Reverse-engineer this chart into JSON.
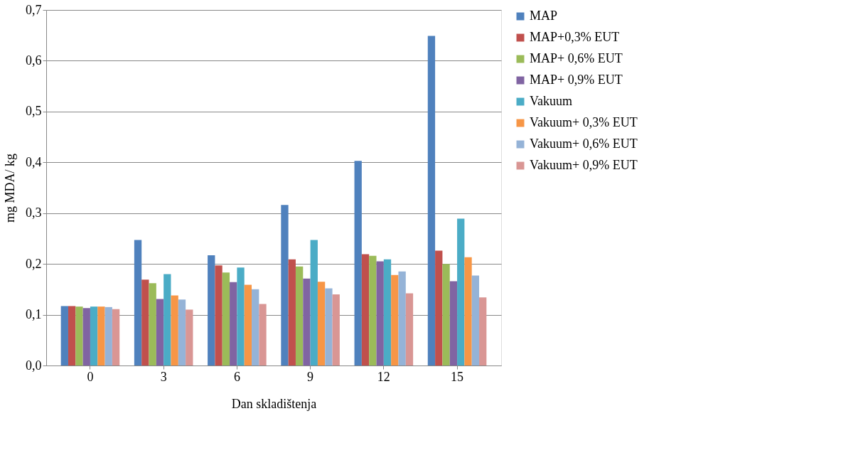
{
  "chart_data": {
    "type": "bar",
    "xlabel": "Dan skladištenja",
    "ylabel": "mg MDA/ kg",
    "categories": [
      "0",
      "3",
      "6",
      "9",
      "12",
      "15"
    ],
    "series": [
      {
        "name": "MAP",
        "color": "#4f81bd",
        "values": [
          0.117,
          0.247,
          0.217,
          0.316,
          0.403,
          0.649
        ]
      },
      {
        "name": "MAP+0,3% EUT",
        "color": "#c0504d",
        "values": [
          0.117,
          0.169,
          0.197,
          0.209,
          0.219,
          0.226
        ]
      },
      {
        "name": "MAP+ 0,6% EUT",
        "color": "#9bbb59",
        "values": [
          0.116,
          0.162,
          0.183,
          0.195,
          0.216,
          0.2
        ]
      },
      {
        "name": "MAP+ 0,9% EUT",
        "color": "#8064a2",
        "values": [
          0.113,
          0.131,
          0.164,
          0.171,
          0.205,
          0.166
        ]
      },
      {
        "name": "Vakuum",
        "color": "#4bacc6",
        "values": [
          0.116,
          0.18,
          0.193,
          0.247,
          0.209,
          0.289
        ]
      },
      {
        "name": "Vakuum+ 0,3% EUT",
        "color": "#f79646",
        "values": [
          0.116,
          0.138,
          0.159,
          0.165,
          0.178,
          0.213
        ]
      },
      {
        "name": "Vakuum+ 0,6% EUT",
        "color": "#95b3d7",
        "values": [
          0.115,
          0.13,
          0.15,
          0.152,
          0.185,
          0.177
        ]
      },
      {
        "name": "Vakuum+ 0,9% EUT",
        "color": "#d99694",
        "values": [
          0.111,
          0.11,
          0.121,
          0.14,
          0.142,
          0.134
        ]
      }
    ],
    "ylim": [
      0,
      0.7
    ],
    "yticks": [
      {
        "value": 0,
        "label": "0,0"
      },
      {
        "value": 0.1,
        "label": "0,1"
      },
      {
        "value": 0.2,
        "label": "0,2"
      },
      {
        "value": 0.3,
        "label": "0,3"
      },
      {
        "value": 0.4,
        "label": "0,4"
      },
      {
        "value": 0.5,
        "label": "0,5"
      },
      {
        "value": 0.6,
        "label": "0,6"
      },
      {
        "value": 0.7,
        "label": "0,7"
      }
    ],
    "grid": "y",
    "legend": "right"
  }
}
